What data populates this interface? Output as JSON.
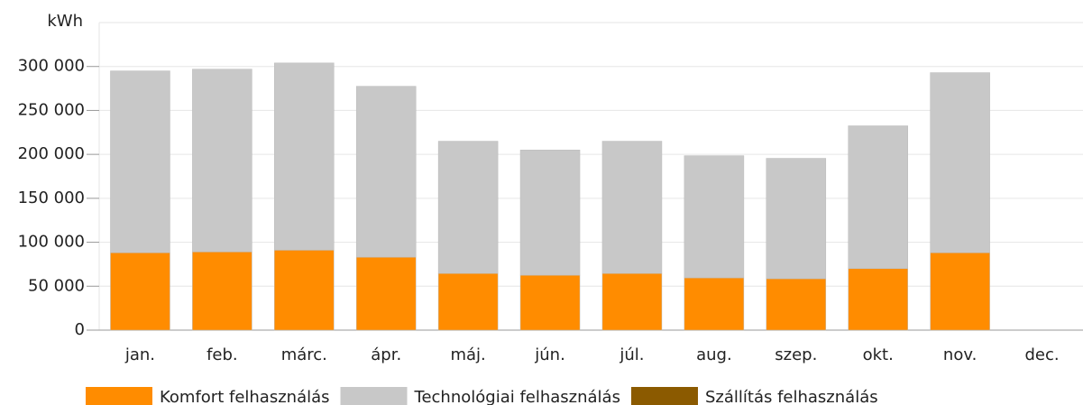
{
  "chart_data": {
    "type": "bar",
    "stacked": true,
    "y_label": "kWh",
    "categories": [
      "jan.",
      "feb.",
      "márc.",
      "ápr.",
      "máj.",
      "jún.",
      "júl.",
      "aug.",
      "szep.",
      "okt.",
      "nov.",
      "dec."
    ],
    "series": [
      {
        "name": "Komfort felhasználás",
        "color": "#ff8c00",
        "values": [
          88000,
          89000,
          91000,
          83000,
          64500,
          62500,
          64500,
          59500,
          58500,
          70000,
          88000,
          null
        ]
      },
      {
        "name": "Technológiai felhasználás",
        "color": "#c8c8c8",
        "values": [
          207000,
          208000,
          213000,
          194500,
          150500,
          142500,
          150500,
          139000,
          137000,
          162500,
          205000,
          null
        ]
      },
      {
        "name": "Szállítás felhasználás",
        "color": "#8b5a00",
        "values": [
          0,
          0,
          0,
          0,
          0,
          0,
          0,
          0,
          0,
          0,
          0,
          null
        ]
      }
    ],
    "ylim": [
      0,
      350000
    ],
    "yticks": [
      0,
      {
        "value": 50000,
        "label": "50 000"
      },
      {
        "value": 100000,
        "label": "100 000"
      },
      {
        "value": 150000,
        "label": "150 000"
      },
      {
        "value": 200000,
        "label": "200 000"
      },
      {
        "value": 250000,
        "label": "250 000"
      },
      {
        "value": 300000,
        "label": "300 000"
      }
    ],
    "grid": true,
    "legend": "bottom"
  }
}
